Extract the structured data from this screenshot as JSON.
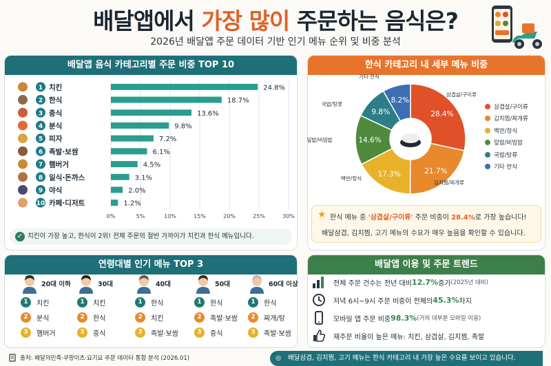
{
  "header": {
    "title_pre": "배달앱에서 ",
    "title_hl": "가장 많이",
    "title_post": " 주문하는 음식은?",
    "subtitle": "2026년 배달앱 주문 데이터 기반 인기 메뉴 순위 및 비중 분석"
  },
  "bar_panel": {
    "heading": "배달앱 음식 카테고리별 주문 비중 TOP 10",
    "summary": "치킨이 가장 높고, 한식이 2위! 전체 주문의 절반 가까이가 치킨과 한식 메뉴입니다."
  },
  "pie_panel": {
    "heading": "한식 카테고리 내 세부 메뉴 비중",
    "note_pre": "한식 메뉴 중 ",
    "note_hl1": "'삼겹살/구이류'",
    "note_mid": " 주문 비중이 ",
    "note_hl2": "28.4%",
    "note_post": "로 가장 높습니다!",
    "note_line2": "배달삼겹, 김치찜, 고기 메뉴의 수요가 매우 높음을 확인할 수 있습니다."
  },
  "age_panel": {
    "heading": "연령대별 인기 메뉴 TOP 3",
    "groups": [
      {
        "label": "20대 이하",
        "items": [
          "치킨",
          "분식",
          "햄버거"
        ]
      },
      {
        "label": "30대",
        "items": [
          "치킨",
          "한식",
          "중식"
        ]
      },
      {
        "label": "40대",
        "items": [
          "한식",
          "치킨",
          "족발·보쌈"
        ]
      },
      {
        "label": "50대",
        "items": [
          "한식",
          "족발·보쌈",
          "중식"
        ]
      },
      {
        "label": "60대 이상",
        "items": [
          "한식",
          "찌개/탕",
          "족발·보쌈"
        ]
      }
    ]
  },
  "trend_panel": {
    "heading": "배달앱 이용 및 주문 트렌드",
    "rows": [
      {
        "pre": "전체 주문 건수는 전년 대비 ",
        "hl": "12.7%",
        "post": " 증가",
        "note": " (2025년 대비)"
      },
      {
        "pre": "저녁 6시~9시 주문 비중이 전체의 ",
        "hl": "45.3%",
        "post": " 차지",
        "note": ""
      },
      {
        "pre": "모바일 앱 주문 비중 ",
        "hl": "98.3%",
        "post": "",
        "note": " (거의 대부분 모바일 이용)"
      },
      {
        "pre": "재주문 비율이 높은 메뉴: 치킨, 삼겹살, 김치찜, 족발",
        "hl": "",
        "post": "",
        "note": ""
      }
    ]
  },
  "footer": {
    "source": "출처: 배달의민족·쿠팡이츠·요기요 주문 데이터 통합 분석 (2026.01)",
    "banner": "배달삼겹, 김치찜, 고기 메뉴는 한식 카테고리 내 가장 높은 수요를 보이고 있습니다."
  },
  "colors": {
    "teal": "#1e6f78",
    "orange": "#e8742c",
    "green": "#3d7f4a",
    "bar": "#2a9d8f"
  },
  "chart_data": [
    {
      "type": "bar",
      "orientation": "horizontal",
      "categories": [
        "치킨",
        "한식",
        "중식",
        "분식",
        "피자",
        "족발·보쌈",
        "햄버거",
        "일식·돈까스",
        "야식",
        "카페·디저트"
      ],
      "values": [
        24.8,
        18.7,
        13.6,
        9.8,
        7.2,
        6.1,
        4.5,
        3.1,
        2.0,
        1.2
      ],
      "value_labels": [
        "24.8%",
        "18.7%",
        "13.6%",
        "9.8%",
        "7.2%",
        "6.1%",
        "4.5%",
        "3.1%",
        "2.0%",
        "1.2%"
      ],
      "xlim": [
        0,
        30
      ],
      "xticks": [
        "0%",
        "5%",
        "10%",
        "15%",
        "20%",
        "25%",
        "30%"
      ],
      "grid": true
    },
    {
      "type": "pie",
      "donut": true,
      "labels": [
        "삼겹살/구이류",
        "김치찜/찌개류",
        "백반/정식",
        "덮밥/비빔밥",
        "국밥/탕류",
        "기타 한식"
      ],
      "values": [
        28.4,
        21.7,
        17.3,
        14.6,
        9.8,
        8.2
      ],
      "value_labels": [
        "28.4%",
        "21.7%",
        "17.3%",
        "14.6%",
        "9.8%",
        "8.2%"
      ],
      "colors": [
        "#e0512a",
        "#e8892c",
        "#e8b12a",
        "#4f8a3c",
        "#2e7e8a",
        "#3b6fb0"
      ],
      "legend": "right"
    }
  ]
}
